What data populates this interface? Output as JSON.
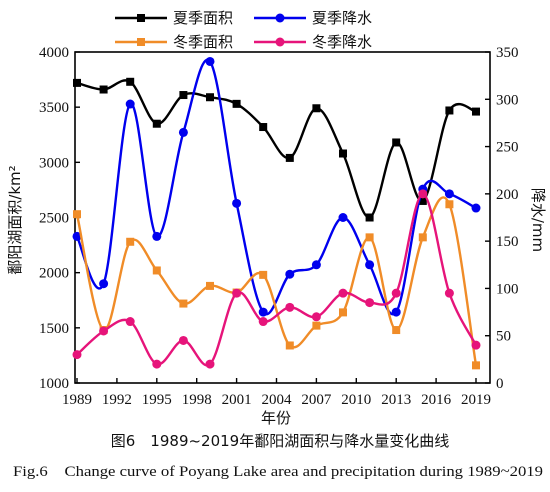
{
  "figure": {
    "caption_cn": "图6　1989~2019年鄱阳湖面积与降水量变化曲线",
    "caption_en": "Fig.6　Change curve of Poyang Lake area and precipitation during 1989~2019"
  },
  "chart_data": {
    "type": "line",
    "title": "",
    "xlabel": "年份",
    "ylabel_left": "鄱阳湖面积/km²",
    "ylabel_right": "降水/mm",
    "x_ticks": [
      1989,
      1992,
      1995,
      1998,
      2001,
      2004,
      2007,
      2010,
      2013,
      2016,
      2019
    ],
    "xlim": [
      1989,
      2019
    ],
    "ylim_left": [
      1000,
      4000
    ],
    "y_ticks_left": [
      1000,
      1500,
      2000,
      2500,
      3000,
      3500,
      4000
    ],
    "ylim_right": [
      0,
      350
    ],
    "y_ticks_right": [
      0,
      50,
      100,
      150,
      200,
      250,
      300,
      350
    ],
    "legend_placement": "top",
    "smooth": true,
    "series": [
      {
        "name": "夏季面积",
        "axis": "left",
        "color": "#000000",
        "marker": "square",
        "x": [
          1989,
          1991,
          1993,
          1995,
          1997,
          1999,
          2001,
          2003,
          2005,
          2007,
          2009,
          2011,
          2013,
          2015,
          2017,
          2019
        ],
        "y": [
          3720,
          3660,
          3730,
          3350,
          3610,
          3590,
          3530,
          3320,
          3040,
          3490,
          3080,
          2500,
          3180,
          2650,
          3470,
          3460
        ]
      },
      {
        "name": "夏季降水",
        "axis": "right",
        "color": "#0000ee",
        "marker": "circle",
        "x": [
          1989,
          1991,
          1993,
          1995,
          1997,
          1999,
          2001,
          2003,
          2005,
          2007,
          2009,
          2011,
          2013,
          2015,
          2017,
          2019
        ],
        "y": [
          155,
          105,
          295,
          155,
          265,
          340,
          190,
          75,
          115,
          125,
          175,
          125,
          75,
          205,
          200,
          185
        ]
      },
      {
        "name": "冬季面积",
        "axis": "left",
        "color": "#f08c28",
        "marker": "square",
        "x": [
          1989,
          1991,
          1993,
          1995,
          1997,
          1999,
          2001,
          2003,
          2005,
          2007,
          2009,
          2011,
          2013,
          2015,
          2017,
          2019
        ],
        "y": [
          2530,
          1480,
          2280,
          2020,
          1720,
          1880,
          1820,
          1980,
          1340,
          1520,
          1640,
          2320,
          1480,
          2320,
          2620,
          1160
        ]
      },
      {
        "name": "冬季降水",
        "axis": "right",
        "color": "#e6147a",
        "marker": "circle",
        "x": [
          1989,
          1991,
          1993,
          1995,
          1997,
          1999,
          2001,
          2003,
          2005,
          2007,
          2009,
          2011,
          2013,
          2015,
          2017,
          2019
        ],
        "y": [
          30,
          55,
          65,
          20,
          45,
          20,
          95,
          65,
          80,
          70,
          95,
          85,
          95,
          200,
          95,
          40
        ]
      }
    ]
  }
}
